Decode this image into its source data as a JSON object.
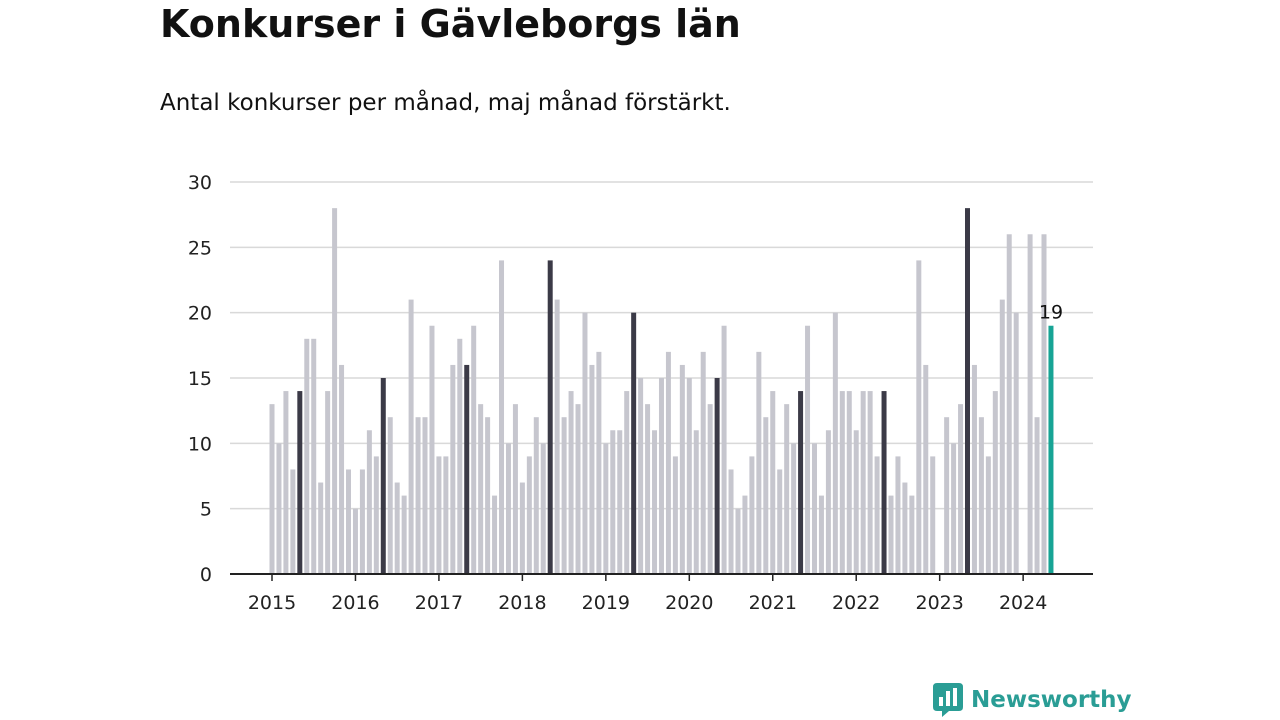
{
  "title": "Konkurser i Gävleborgs län",
  "subtitle": "Antal konkurser per månad, maj månad förstärkt.",
  "brand": {
    "name": "Newsworthy",
    "color": "#2a9d95",
    "icon": "newsworthy-logo-icon"
  },
  "chart_data": {
    "type": "bar",
    "title": "Konkurser i Gävleborgs län",
    "subtitle": "Antal konkurser per månad, maj månad förstärkt.",
    "xlabel": "",
    "ylabel": "",
    "ylim": [
      0,
      30
    ],
    "yticks": [
      0,
      5,
      10,
      15,
      20,
      25,
      30
    ],
    "grid": true,
    "legend": "none",
    "colors": {
      "default": "#c6c6ce",
      "may": "#3b3a47",
      "latest": "#17a495",
      "axis": "#222222",
      "grid": "#d9d9d9"
    },
    "start": "2015-01",
    "x_tick_labels": [
      "2015",
      "2016",
      "2017",
      "2018",
      "2019",
      "2020",
      "2021",
      "2022",
      "2023",
      "2024"
    ],
    "values": [
      13,
      10,
      14,
      8,
      14,
      18,
      18,
      7,
      14,
      28,
      16,
      8,
      5,
      8,
      11,
      9,
      15,
      12,
      7,
      6,
      21,
      12,
      12,
      19,
      9,
      9,
      16,
      18,
      16,
      19,
      13,
      12,
      6,
      24,
      10,
      13,
      7,
      9,
      12,
      10,
      24,
      21,
      12,
      14,
      13,
      20,
      16,
      17,
      10,
      11,
      11,
      14,
      20,
      15,
      13,
      11,
      15,
      17,
      9,
      16,
      15,
      11,
      17,
      13,
      15,
      19,
      8,
      5,
      6,
      9,
      17,
      12,
      14,
      8,
      13,
      10,
      14,
      19,
      10,
      6,
      11,
      20,
      14,
      14,
      11,
      14,
      14,
      9,
      14,
      6,
      9,
      7,
      6,
      24,
      16,
      9,
      0,
      12,
      10,
      13,
      28,
      16,
      12,
      9,
      14,
      21,
      26,
      20,
      0,
      26,
      12,
      26,
      19
    ],
    "highlight_month": "05",
    "value_labels": [
      {
        "period": "2024-05",
        "label": "19"
      }
    ]
  }
}
